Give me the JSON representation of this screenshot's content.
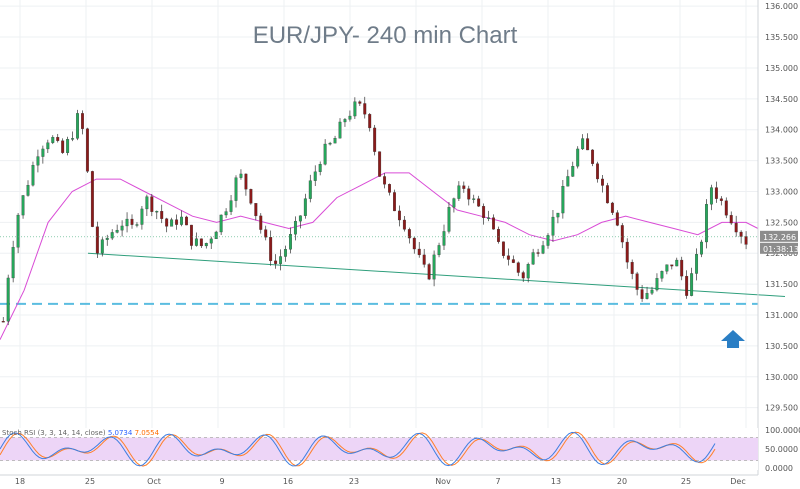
{
  "chart_data": {
    "type": "candlestick",
    "title": "EUR/JPY- 240 min Chart",
    "price_axis": {
      "ticks": [
        "136.000",
        "135.500",
        "135.000",
        "134.500",
        "134.000",
        "133.500",
        "133.000",
        "132.500",
        "132.000",
        "131.500",
        "131.000",
        "130.500",
        "130.000",
        "129.500"
      ],
      "ylim": [
        129.3,
        136.1
      ]
    },
    "date_axis": [
      "18",
      "25",
      "Oct",
      "9",
      "16",
      "23",
      "Nov",
      "7",
      "13",
      "20",
      "25",
      "Dec"
    ],
    "current_price": "132.266",
    "countdown": "01:38:13",
    "ohlc_close_path": [
      [
        0,
        130.9
      ],
      [
        0.5,
        131.8
      ],
      [
        1.2,
        132.6
      ],
      [
        2,
        133.1
      ],
      [
        3,
        133.7
      ],
      [
        4,
        133.9
      ],
      [
        5,
        133.6
      ],
      [
        6,
        134.0
      ],
      [
        6.5,
        134.3
      ],
      [
        7,
        133.6
      ],
      [
        7.5,
        132.5
      ],
      [
        8,
        132.0
      ],
      [
        9,
        132.3
      ],
      [
        10,
        132.5
      ],
      [
        11,
        132.4
      ],
      [
        12,
        132.9
      ],
      [
        13,
        132.7
      ],
      [
        14,
        132.4
      ],
      [
        15,
        132.6
      ],
      [
        16,
        132.2
      ],
      [
        17,
        132.1
      ],
      [
        18,
        132.4
      ],
      [
        19,
        132.8
      ],
      [
        20,
        133.3
      ],
      [
        21,
        132.9
      ],
      [
        22,
        132.3
      ],
      [
        23,
        131.8
      ],
      [
        24,
        132.1
      ],
      [
        25,
        132.5
      ],
      [
        26,
        133.1
      ],
      [
        27,
        133.6
      ],
      [
        28,
        133.8
      ],
      [
        29,
        134.2
      ],
      [
        30,
        134.4
      ],
      [
        31,
        134.2
      ],
      [
        32,
        133.2
      ],
      [
        33,
        132.8
      ],
      [
        34,
        132.5
      ],
      [
        35,
        132.0
      ],
      [
        36,
        131.6
      ],
      [
        37,
        132.2
      ],
      [
        38,
        132.8
      ],
      [
        39,
        133.1
      ],
      [
        40,
        132.8
      ],
      [
        41,
        132.6
      ],
      [
        42,
        132.1
      ],
      [
        43,
        131.9
      ],
      [
        44,
        131.6
      ],
      [
        45,
        132.0
      ],
      [
        46,
        132.3
      ],
      [
        47,
        132.7
      ],
      [
        48,
        133.3
      ],
      [
        49,
        133.8
      ],
      [
        50,
        133.5
      ],
      [
        51,
        133.0
      ],
      [
        52,
        132.6
      ],
      [
        53,
        131.8
      ],
      [
        54,
        131.3
      ],
      [
        55,
        131.4
      ],
      [
        56,
        131.7
      ],
      [
        57,
        131.9
      ],
      [
        58,
        131.4
      ],
      [
        59,
        132.0
      ],
      [
        60,
        133.1
      ],
      [
        61,
        132.8
      ],
      [
        62,
        132.5
      ],
      [
        63,
        132.2
      ]
    ],
    "moving_average": [
      [
        0,
        130.6
      ],
      [
        2,
        131.4
      ],
      [
        4,
        132.5
      ],
      [
        6,
        133.0
      ],
      [
        8,
        133.2
      ],
      [
        10,
        133.2
      ],
      [
        12,
        133.0
      ],
      [
        14,
        132.8
      ],
      [
        16,
        132.6
      ],
      [
        18,
        132.5
      ],
      [
        20,
        132.6
      ],
      [
        22,
        132.5
      ],
      [
        24,
        132.4
      ],
      [
        26,
        132.5
      ],
      [
        28,
        132.9
      ],
      [
        30,
        133.1
      ],
      [
        32,
        133.3
      ],
      [
        34,
        133.3
      ],
      [
        36,
        133.0
      ],
      [
        38,
        132.7
      ],
      [
        40,
        132.6
      ],
      [
        42,
        132.5
      ],
      [
        44,
        132.3
      ],
      [
        46,
        132.2
      ],
      [
        48,
        132.3
      ],
      [
        50,
        132.5
      ],
      [
        52,
        132.6
      ],
      [
        54,
        132.5
      ],
      [
        56,
        132.4
      ],
      [
        58,
        132.3
      ],
      [
        60,
        132.5
      ],
      [
        62,
        132.5
      ],
      [
        63,
        132.4
      ]
    ],
    "support_trendline": [
      [
        0,
        132.0
      ],
      [
        70,
        131.3
      ]
    ],
    "horizontal_level": 131.18,
    "indicator": {
      "name": "Stoch RSI (3, 3, 14, 14, close)",
      "k_value": "5.0734",
      "d_value": "7.0554",
      "ticks": [
        "100.0000",
        "50.0000",
        "0.0000"
      ]
    }
  },
  "legend": {
    "label": "Stoch RSI (3, 3, 14, 14, close)"
  }
}
